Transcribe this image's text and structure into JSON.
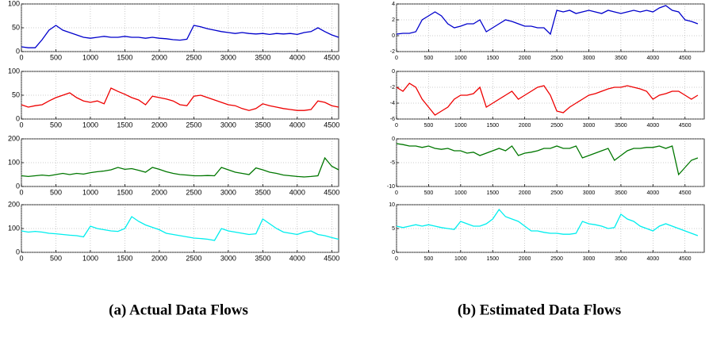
{
  "chart_data": [
    {
      "type": "line",
      "x": [
        0,
        100,
        200,
        300,
        400,
        500,
        600,
        700,
        800,
        900,
        1000,
        1100,
        1200,
        1300,
        1400,
        1500,
        1600,
        1700,
        1800,
        1900,
        2000,
        2100,
        2200,
        2300,
        2400,
        2500,
        2600,
        2700,
        2800,
        2900,
        3000,
        3100,
        3200,
        3300,
        3400,
        3500,
        3600,
        3700,
        3800,
        3900,
        4000,
        4100,
        4200,
        4300,
        4400,
        4500,
        4600
      ],
      "series": [
        {
          "color": "#0000cc",
          "values": [
            10,
            8,
            8,
            25,
            45,
            55,
            45,
            40,
            35,
            30,
            28,
            30,
            32,
            30,
            30,
            32,
            30,
            30,
            28,
            30,
            28,
            27,
            25,
            24,
            26,
            55,
            52,
            48,
            45,
            42,
            40,
            38,
            40,
            38,
            37,
            38,
            36,
            38,
            37,
            38,
            36,
            40,
            42,
            50,
            42,
            35,
            30
          ]
        }
      ],
      "xlim": [
        0,
        4600
      ],
      "ylim": [
        0,
        100
      ],
      "xticks": [
        0,
        500,
        1000,
        1500,
        2000,
        2500,
        3000,
        3500,
        4000,
        4500
      ],
      "yticks": [
        0,
        50,
        100
      ],
      "grid": true
    },
    {
      "type": "line",
      "x": [
        0,
        100,
        200,
        300,
        400,
        500,
        600,
        700,
        800,
        900,
        1000,
        1100,
        1200,
        1300,
        1400,
        1500,
        1600,
        1700,
        1800,
        1900,
        2000,
        2100,
        2200,
        2300,
        2400,
        2500,
        2600,
        2700,
        2800,
        2900,
        3000,
        3100,
        3200,
        3300,
        3400,
        3500,
        3600,
        3700,
        3800,
        3900,
        4000,
        4100,
        4200,
        4300,
        4400,
        4500,
        4600
      ],
      "series": [
        {
          "color": "#ee0000",
          "values": [
            30,
            25,
            28,
            30,
            38,
            45,
            50,
            55,
            45,
            38,
            35,
            38,
            32,
            65,
            58,
            52,
            45,
            40,
            30,
            48,
            45,
            42,
            38,
            30,
            28,
            48,
            50,
            45,
            40,
            35,
            30,
            28,
            22,
            18,
            22,
            32,
            28,
            25,
            22,
            20,
            18,
            18,
            20,
            38,
            35,
            28,
            25
          ]
        }
      ],
      "xlim": [
        0,
        4600
      ],
      "ylim": [
        0,
        100
      ],
      "xticks": [
        0,
        500,
        1000,
        1500,
        2000,
        2500,
        3000,
        3500,
        4000,
        4500
      ],
      "yticks": [
        0,
        50,
        100
      ],
      "grid": true
    },
    {
      "type": "line",
      "x": [
        0,
        100,
        200,
        300,
        400,
        500,
        600,
        700,
        800,
        900,
        1000,
        1100,
        1200,
        1300,
        1400,
        1500,
        1600,
        1700,
        1800,
        1900,
        2000,
        2100,
        2200,
        2300,
        2400,
        2500,
        2600,
        2700,
        2800,
        2900,
        3000,
        3100,
        3200,
        3300,
        3400,
        3500,
        3600,
        3700,
        3800,
        3900,
        4000,
        4100,
        4200,
        4300,
        4400,
        4500,
        4600
      ],
      "series": [
        {
          "color": "#007700",
          "values": [
            45,
            42,
            45,
            48,
            45,
            50,
            55,
            50,
            55,
            52,
            58,
            62,
            65,
            70,
            80,
            72,
            75,
            68,
            60,
            80,
            72,
            62,
            55,
            50,
            48,
            45,
            45,
            46,
            45,
            80,
            70,
            60,
            55,
            50,
            78,
            70,
            60,
            55,
            48,
            45,
            42,
            40,
            42,
            45,
            120,
            85,
            70
          ]
        }
      ],
      "xlim": [
        0,
        4600
      ],
      "ylim": [
        0,
        200
      ],
      "xticks": [
        0,
        500,
        1000,
        1500,
        2000,
        2500,
        3000,
        3500,
        4000,
        4500
      ],
      "yticks": [
        0,
        100,
        200
      ],
      "grid": true
    },
    {
      "type": "line",
      "x": [
        0,
        100,
        200,
        300,
        400,
        500,
        600,
        700,
        800,
        900,
        1000,
        1100,
        1200,
        1300,
        1400,
        1500,
        1600,
        1700,
        1800,
        1900,
        2000,
        2100,
        2200,
        2300,
        2400,
        2500,
        2600,
        2700,
        2800,
        2900,
        3000,
        3100,
        3200,
        3300,
        3400,
        3500,
        3600,
        3700,
        3800,
        3900,
        4000,
        4100,
        4200,
        4300,
        4400,
        4500,
        4600
      ],
      "series": [
        {
          "color": "#00eeee",
          "values": [
            90,
            85,
            88,
            85,
            80,
            78,
            75,
            72,
            70,
            65,
            110,
            100,
            95,
            90,
            88,
            100,
            150,
            130,
            115,
            105,
            95,
            80,
            75,
            70,
            65,
            60,
            58,
            55,
            50,
            100,
            90,
            85,
            80,
            75,
            78,
            140,
            120,
            100,
            85,
            80,
            75,
            85,
            90,
            75,
            70,
            62,
            55
          ]
        }
      ],
      "xlim": [
        0,
        4600
      ],
      "ylim": [
        0,
        200
      ],
      "xticks": [
        0,
        500,
        1000,
        1500,
        2000,
        2500,
        3000,
        3500,
        4000,
        4500
      ],
      "yticks": [
        0,
        100,
        200
      ],
      "grid": true
    },
    {
      "type": "line",
      "x": [
        0,
        100,
        200,
        300,
        400,
        500,
        600,
        700,
        800,
        900,
        1000,
        1100,
        1200,
        1300,
        1400,
        1500,
        1600,
        1700,
        1800,
        1900,
        2000,
        2100,
        2200,
        2300,
        2400,
        2500,
        2600,
        2700,
        2800,
        2900,
        3000,
        3100,
        3200,
        3300,
        3400,
        3500,
        3600,
        3700,
        3800,
        3900,
        4000,
        4100,
        4200,
        4300,
        4400,
        4500,
        4600,
        4700
      ],
      "series": [
        {
          "color": "#0000cc",
          "values": [
            0.2,
            0.3,
            0.3,
            0.5,
            2,
            2.5,
            3,
            2.5,
            1.5,
            1,
            1.2,
            1.5,
            1.5,
            2,
            0.5,
            1,
            1.5,
            2,
            1.8,
            1.5,
            1.2,
            1.2,
            1,
            1,
            0.2,
            3.2,
            3,
            3.2,
            2.8,
            3,
            3.2,
            3,
            2.8,
            3.2,
            3,
            2.8,
            3,
            3.2,
            3,
            3.2,
            3,
            3.5,
            3.8,
            3.2,
            3,
            2,
            1.8,
            1.5
          ]
        }
      ],
      "xlim": [
        0,
        4800
      ],
      "ylim": [
        -2,
        4
      ],
      "xticks": [
        0,
        500,
        1000,
        1500,
        2000,
        2500,
        3000,
        3500,
        4000,
        4500
      ],
      "yticks": [
        -2,
        0,
        2,
        4
      ],
      "grid": true
    },
    {
      "type": "line",
      "x": [
        0,
        100,
        200,
        300,
        400,
        500,
        600,
        700,
        800,
        900,
        1000,
        1100,
        1200,
        1300,
        1400,
        1500,
        1600,
        1700,
        1800,
        1900,
        2000,
        2100,
        2200,
        2300,
        2400,
        2500,
        2600,
        2700,
        2800,
        2900,
        3000,
        3100,
        3200,
        3300,
        3400,
        3500,
        3600,
        3700,
        3800,
        3900,
        4000,
        4100,
        4200,
        4300,
        4400,
        4500,
        4600,
        4700
      ],
      "series": [
        {
          "color": "#ee0000",
          "values": [
            -2,
            -2.5,
            -1.5,
            -2,
            -3.5,
            -4.5,
            -5.5,
            -5,
            -4.5,
            -3.5,
            -3,
            -3,
            -2.8,
            -2,
            -4.5,
            -4,
            -3.5,
            -3,
            -2.5,
            -3.5,
            -3,
            -2.5,
            -2,
            -1.8,
            -3,
            -5,
            -5.2,
            -4.5,
            -4,
            -3.5,
            -3,
            -2.8,
            -2.5,
            -2.2,
            -2,
            -2,
            -1.8,
            -2,
            -2.2,
            -2.5,
            -3.5,
            -3,
            -2.8,
            -2.5,
            -2.5,
            -3,
            -3.5,
            -3
          ]
        }
      ],
      "xlim": [
        0,
        4800
      ],
      "ylim": [
        -6,
        0
      ],
      "xticks": [
        0,
        500,
        1000,
        1500,
        2000,
        2500,
        3000,
        3500,
        4000,
        4500
      ],
      "yticks": [
        -6,
        -4,
        -2,
        0
      ],
      "grid": true
    },
    {
      "type": "line",
      "x": [
        0,
        100,
        200,
        300,
        400,
        500,
        600,
        700,
        800,
        900,
        1000,
        1100,
        1200,
        1300,
        1400,
        1500,
        1600,
        1700,
        1800,
        1900,
        2000,
        2100,
        2200,
        2300,
        2400,
        2500,
        2600,
        2700,
        2800,
        2900,
        3000,
        3100,
        3200,
        3300,
        3400,
        3500,
        3600,
        3700,
        3800,
        3900,
        4000,
        4100,
        4200,
        4300,
        4400,
        4500,
        4600,
        4700
      ],
      "series": [
        {
          "color": "#007700",
          "values": [
            -1,
            -1.2,
            -1.5,
            -1.5,
            -1.8,
            -1.5,
            -2,
            -2.2,
            -2,
            -2.5,
            -2.5,
            -3,
            -2.8,
            -3.5,
            -3,
            -2.5,
            -2,
            -2.5,
            -1.5,
            -3.5,
            -3,
            -2.8,
            -2.5,
            -2,
            -2,
            -1.5,
            -2,
            -2,
            -1.5,
            -4,
            -3.5,
            -3,
            -2.5,
            -2,
            -4.5,
            -3.5,
            -2.5,
            -2,
            -2,
            -1.8,
            -1.8,
            -1.5,
            -2,
            -1.5,
            -7.5,
            -6,
            -4.5,
            -4
          ]
        }
      ],
      "xlim": [
        0,
        4800
      ],
      "ylim": [
        -10,
        0
      ],
      "xticks": [
        0,
        500,
        1000,
        1500,
        2000,
        2500,
        3000,
        3500,
        4000,
        4500
      ],
      "yticks": [
        -10,
        -5,
        0
      ],
      "grid": true
    },
    {
      "type": "line",
      "x": [
        0,
        100,
        200,
        300,
        400,
        500,
        600,
        700,
        800,
        900,
        1000,
        1100,
        1200,
        1300,
        1400,
        1500,
        1600,
        1700,
        1800,
        1900,
        2000,
        2100,
        2200,
        2300,
        2400,
        2500,
        2600,
        2700,
        2800,
        2900,
        3000,
        3100,
        3200,
        3300,
        3400,
        3500,
        3600,
        3700,
        3800,
        3900,
        4000,
        4100,
        4200,
        4300,
        4400,
        4500,
        4600,
        4700
      ],
      "series": [
        {
          "color": "#00eeee",
          "values": [
            5.5,
            5.2,
            5.5,
            5.8,
            5.5,
            5.8,
            5.5,
            5.2,
            5,
            4.8,
            6.5,
            6,
            5.5,
            5.5,
            6,
            7,
            9,
            7.5,
            7,
            6.5,
            5.5,
            4.5,
            4.5,
            4.2,
            4,
            4,
            3.8,
            3.8,
            4,
            6.5,
            6,
            5.8,
            5.5,
            5,
            5.2,
            8,
            7,
            6.5,
            5.5,
            5,
            4.5,
            5.5,
            6,
            5.5,
            5,
            4.5,
            4,
            3.5
          ]
        }
      ],
      "xlim": [
        0,
        4800
      ],
      "ylim": [
        0,
        10
      ],
      "xticks": [
        0,
        500,
        1000,
        1500,
        2000,
        2500,
        3000,
        3500,
        4000,
        4500
      ],
      "yticks": [
        0,
        5,
        10
      ],
      "grid": true
    }
  ],
  "captions": [
    "(a) Actual Data Flows",
    "(b) Estimated Data Flows"
  ]
}
